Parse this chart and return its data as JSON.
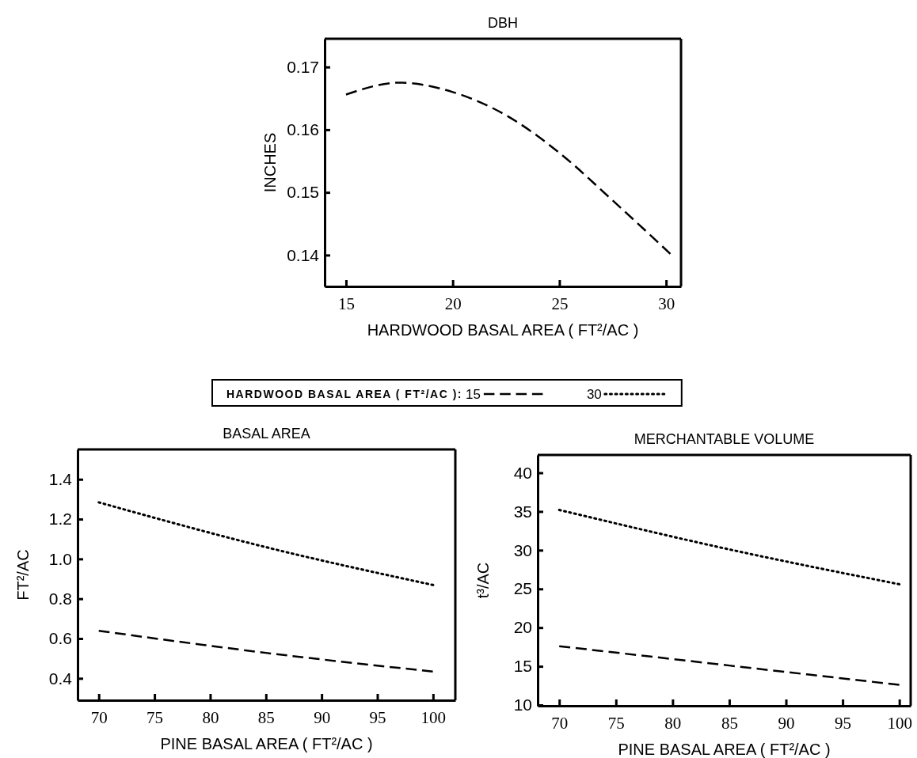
{
  "chart_data": [
    {
      "type": "line",
      "title": "DBH",
      "xlabel": "HARDWOOD BASAL AREA ( FT²/AC )",
      "ylabel": "INCHES",
      "xlim": [
        14,
        30.7
      ],
      "ylim": [
        0.135,
        0.1745
      ],
      "xticks": [
        15,
        20,
        25,
        30
      ],
      "yticks": [
        0.14,
        0.15,
        0.16,
        0.17
      ],
      "line_style": "dashed",
      "marker": "none",
      "grid": false,
      "legend": false,
      "x": [
        15,
        17.5,
        20,
        22.5,
        25,
        27.5,
        30.2
      ],
      "series": [
        {
          "color": "#000000",
          "values": [
            0.1656,
            0.1675,
            0.166,
            0.1623,
            0.1563,
            0.1487,
            0.1402
          ]
        }
      ]
    },
    {
      "type": "line",
      "title": "BASAL AREA",
      "xlabel": "PINE BASAL AREA ( FT²/AC )",
      "ylabel": "FT²/AC",
      "legend_title": "HARDWOOD BASAL AREA ( FT²/AC ):",
      "legend": "top",
      "marker": "none",
      "grid": false,
      "xlim": [
        68.1,
        102
      ],
      "ylim": [
        0.29,
        1.55
      ],
      "xticks": [
        70,
        75,
        80,
        85,
        90,
        95,
        100
      ],
      "yticks": [
        0.4,
        0.6,
        0.8,
        {
          "value": 1,
          "label": "1.0"
        },
        1.2,
        1.4
      ],
      "x": [
        70,
        85,
        100
      ],
      "series": [
        {
          "name": "15",
          "color": "#000000",
          "line_style": "dashed",
          "values": [
            0.639,
            0.528,
            0.434
          ]
        },
        {
          "name": "30",
          "color": "#000000",
          "line_style": "dotted",
          "values": [
            1.284,
            1.059,
            0.869
          ]
        }
      ]
    },
    {
      "type": "line",
      "title": "MERCHANTABLE VOLUME",
      "xlabel": "PINE BASAL AREA ( FT²/AC )",
      "ylabel": "t³/AC",
      "marker": "none",
      "grid": false,
      "legend": false,
      "xlim": [
        68.1,
        101
      ],
      "ylim": [
        9.9,
        42.3
      ],
      "xticks": [
        70,
        75,
        80,
        85,
        90,
        95,
        100
      ],
      "yticks": [
        10,
        15,
        20,
        25,
        30,
        35,
        40
      ],
      "x": [
        70,
        85,
        100
      ],
      "series": [
        {
          "color": "#000000",
          "line_style": "dashed",
          "values": [
            17.6,
            15.1,
            12.6
          ]
        },
        {
          "color": "#000000",
          "line_style": "dotted",
          "values": [
            35.2,
            30.1,
            25.6
          ]
        }
      ]
    }
  ]
}
